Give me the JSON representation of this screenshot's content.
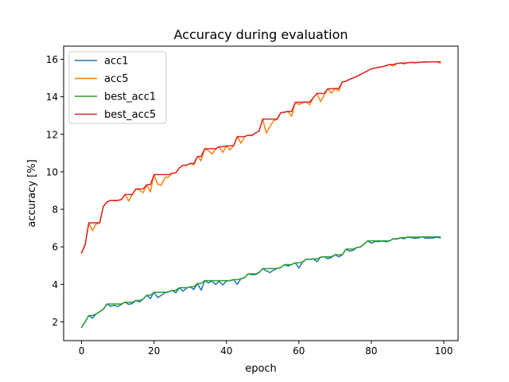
{
  "chart_data": {
    "type": "line",
    "title": "Accuracy during evaluation",
    "xlabel": "epoch",
    "ylabel": "accuracy [%]",
    "xlim": [
      -4.95,
      103.95
    ],
    "ylim": [
      1.0,
      16.7
    ],
    "xticks": [
      0,
      20,
      40,
      60,
      80,
      100
    ],
    "yticks": [
      2,
      4,
      6,
      8,
      10,
      12,
      14,
      16
    ],
    "grid": false,
    "legend_position": "top-left",
    "series": [
      {
        "name": "acc1",
        "color": "#1f77b4",
        "values": [
          1.71,
          2.0,
          2.34,
          2.2,
          2.42,
          2.54,
          2.67,
          2.95,
          2.83,
          2.88,
          2.82,
          2.93,
          3.05,
          2.93,
          2.98,
          3.14,
          3.06,
          3.21,
          3.42,
          3.24,
          3.58,
          3.3,
          3.41,
          3.55,
          3.6,
          3.68,
          3.55,
          3.82,
          3.63,
          3.8,
          3.87,
          3.72,
          4.05,
          3.69,
          4.2,
          4.08,
          4.17,
          3.99,
          4.16,
          3.97,
          4.18,
          4.2,
          4.25,
          4.0,
          4.3,
          4.36,
          4.56,
          4.51,
          4.52,
          4.63,
          4.84,
          4.72,
          4.63,
          4.76,
          4.85,
          4.9,
          5.05,
          4.97,
          5.06,
          5.15,
          4.87,
          5.19,
          5.34,
          5.33,
          5.36,
          5.21,
          5.45,
          5.47,
          5.37,
          5.44,
          5.58,
          5.46,
          5.58,
          5.88,
          5.77,
          5.82,
          5.97,
          5.99,
          6.14,
          6.32,
          6.19,
          6.29,
          6.28,
          6.31,
          6.27,
          6.31,
          6.43,
          6.41,
          6.48,
          6.43,
          6.52,
          6.49,
          6.46,
          6.48,
          6.53,
          6.46,
          6.47,
          6.47,
          6.51,
          6.48
        ]
      },
      {
        "name": "acc5",
        "color": "#ff7f0e",
        "values": [
          5.68,
          6.12,
          7.28,
          6.87,
          7.21,
          7.28,
          8.15,
          8.39,
          8.48,
          8.46,
          8.47,
          8.52,
          8.79,
          8.44,
          8.78,
          9.09,
          9.02,
          8.89,
          9.31,
          8.93,
          9.85,
          9.34,
          9.28,
          9.69,
          9.72,
          9.92,
          9.95,
          10.21,
          10.35,
          10.35,
          10.45,
          10.37,
          10.82,
          10.59,
          11.23,
          11.13,
          10.95,
          11.21,
          11.34,
          11.03,
          11.38,
          11.17,
          11.4,
          11.88,
          11.52,
          11.88,
          11.95,
          11.92,
          12.07,
          12.17,
          12.81,
          12.06,
          12.41,
          12.72,
          12.8,
          13.15,
          13.18,
          13.22,
          12.96,
          13.71,
          13.59,
          13.68,
          13.72,
          13.58,
          13.96,
          14.18,
          13.74,
          14.1,
          14.43,
          14.19,
          14.44,
          14.31,
          14.79,
          14.83,
          14.93,
          15.01,
          15.09,
          15.19,
          15.29,
          15.39,
          15.49,
          15.53,
          15.57,
          15.6,
          15.66,
          15.72,
          15.64,
          15.77,
          15.8,
          15.75,
          15.82,
          15.83,
          15.81,
          15.83,
          15.85,
          15.85,
          15.86,
          15.86,
          15.86,
          15.8
        ]
      },
      {
        "name": "best_acc1",
        "color": "#2ca02c",
        "values": [
          1.71,
          2.0,
          2.34,
          2.34,
          2.42,
          2.54,
          2.67,
          2.95,
          2.95,
          2.95,
          2.95,
          2.95,
          3.05,
          3.05,
          3.05,
          3.14,
          3.14,
          3.21,
          3.42,
          3.42,
          3.58,
          3.58,
          3.58,
          3.58,
          3.6,
          3.68,
          3.68,
          3.82,
          3.82,
          3.82,
          3.87,
          3.87,
          4.05,
          4.05,
          4.2,
          4.2,
          4.2,
          4.2,
          4.2,
          4.2,
          4.2,
          4.2,
          4.25,
          4.25,
          4.3,
          4.36,
          4.56,
          4.56,
          4.56,
          4.63,
          4.84,
          4.84,
          4.84,
          4.84,
          4.85,
          4.9,
          5.05,
          5.05,
          5.06,
          5.15,
          5.15,
          5.19,
          5.34,
          5.34,
          5.36,
          5.36,
          5.45,
          5.47,
          5.47,
          5.47,
          5.58,
          5.58,
          5.58,
          5.88,
          5.88,
          5.88,
          5.97,
          5.99,
          6.14,
          6.32,
          6.32,
          6.32,
          6.32,
          6.32,
          6.32,
          6.32,
          6.43,
          6.43,
          6.48,
          6.48,
          6.52,
          6.52,
          6.52,
          6.52,
          6.53,
          6.53,
          6.53,
          6.53,
          6.53,
          6.53
        ]
      },
      {
        "name": "best_acc5",
        "color": "#d62728",
        "values": [
          5.68,
          6.12,
          7.28,
          7.28,
          7.28,
          7.28,
          8.15,
          8.39,
          8.48,
          8.48,
          8.48,
          8.52,
          8.79,
          8.79,
          8.79,
          9.09,
          9.09,
          9.09,
          9.31,
          9.31,
          9.85,
          9.85,
          9.85,
          9.85,
          9.85,
          9.92,
          9.95,
          10.21,
          10.35,
          10.35,
          10.45,
          10.45,
          10.82,
          10.82,
          11.23,
          11.23,
          11.23,
          11.23,
          11.34,
          11.34,
          11.38,
          11.38,
          11.4,
          11.88,
          11.88,
          11.88,
          11.95,
          11.95,
          12.07,
          12.17,
          12.81,
          12.81,
          12.81,
          12.81,
          12.81,
          13.15,
          13.18,
          13.22,
          13.22,
          13.71,
          13.71,
          13.71,
          13.72,
          13.72,
          13.96,
          14.18,
          14.18,
          14.18,
          14.43,
          14.43,
          14.44,
          14.44,
          14.79,
          14.83,
          14.93,
          15.01,
          15.09,
          15.19,
          15.29,
          15.39,
          15.49,
          15.53,
          15.57,
          15.6,
          15.66,
          15.72,
          15.72,
          15.77,
          15.8,
          15.8,
          15.82,
          15.83,
          15.83,
          15.83,
          15.85,
          15.85,
          15.86,
          15.86,
          15.86,
          15.86
        ]
      }
    ]
  }
}
